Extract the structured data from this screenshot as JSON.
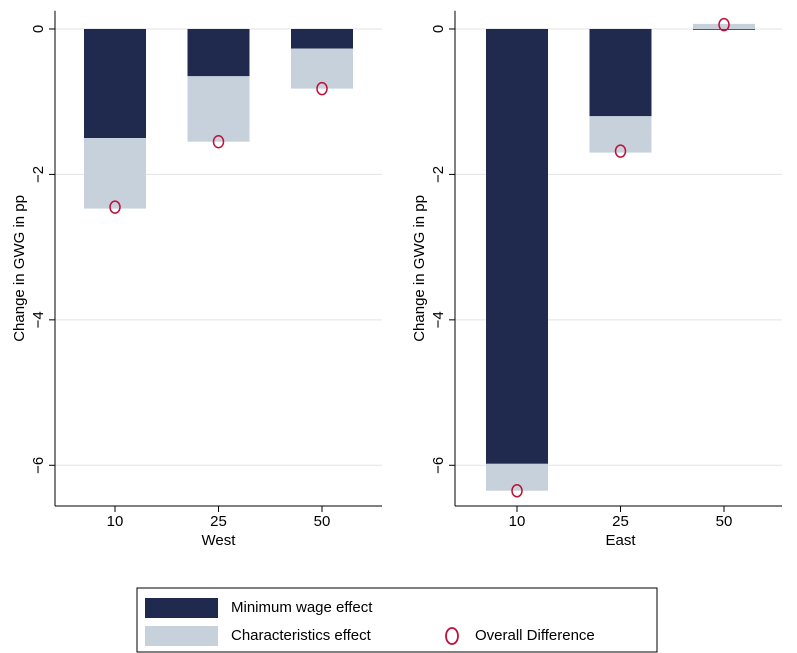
{
  "chart_data": [
    {
      "type": "bar",
      "ylabel": "Change in GWG in pp",
      "xlabel": "West",
      "categories": [
        "10",
        "25",
        "50"
      ],
      "ylim": [
        -6.56,
        0.25
      ],
      "yticks": [
        {
          "value": 0,
          "label": "0"
        },
        {
          "value": -2,
          "label": "−2"
        },
        {
          "value": -4,
          "label": "−4"
        },
        {
          "value": -6,
          "label": "−6"
        }
      ],
      "grid": true,
      "series": [
        {
          "name": "Minimum wage effect",
          "kind": "bar",
          "color": "#1f2a4e",
          "values": [
            -1.5,
            -0.65,
            -0.27
          ]
        },
        {
          "name": "Characteristics effect",
          "kind": "bar",
          "color": "#c6d1dc",
          "values": [
            -0.97,
            -0.9,
            -0.55
          ]
        },
        {
          "name": "Overall Difference",
          "kind": "scatter",
          "color": "#c0103a",
          "values": [
            -2.45,
            -1.55,
            -0.82
          ]
        }
      ]
    },
    {
      "type": "bar",
      "ylabel": "Change in GWG in pp",
      "xlabel": "East",
      "categories": [
        "10",
        "25",
        "50"
      ],
      "ylim": [
        -6.56,
        0.25
      ],
      "yticks": [
        {
          "value": 0,
          "label": "0"
        },
        {
          "value": -2,
          "label": "−2"
        },
        {
          "value": -4,
          "label": "−4"
        },
        {
          "value": -6,
          "label": "−6"
        }
      ],
      "grid": true,
      "series": [
        {
          "name": "Minimum wage effect",
          "kind": "bar",
          "color": "#1f2a4e",
          "values": [
            -5.98,
            -1.2,
            -0.01
          ]
        },
        {
          "name": "Characteristics effect",
          "kind": "bar",
          "color": "#c6d1dc",
          "values": [
            -0.37,
            -0.5,
            0.07
          ]
        },
        {
          "name": "Overall Difference",
          "kind": "scatter",
          "color": "#c0103a",
          "values": [
            -6.35,
            -1.68,
            0.06
          ]
        }
      ]
    }
  ]
}
